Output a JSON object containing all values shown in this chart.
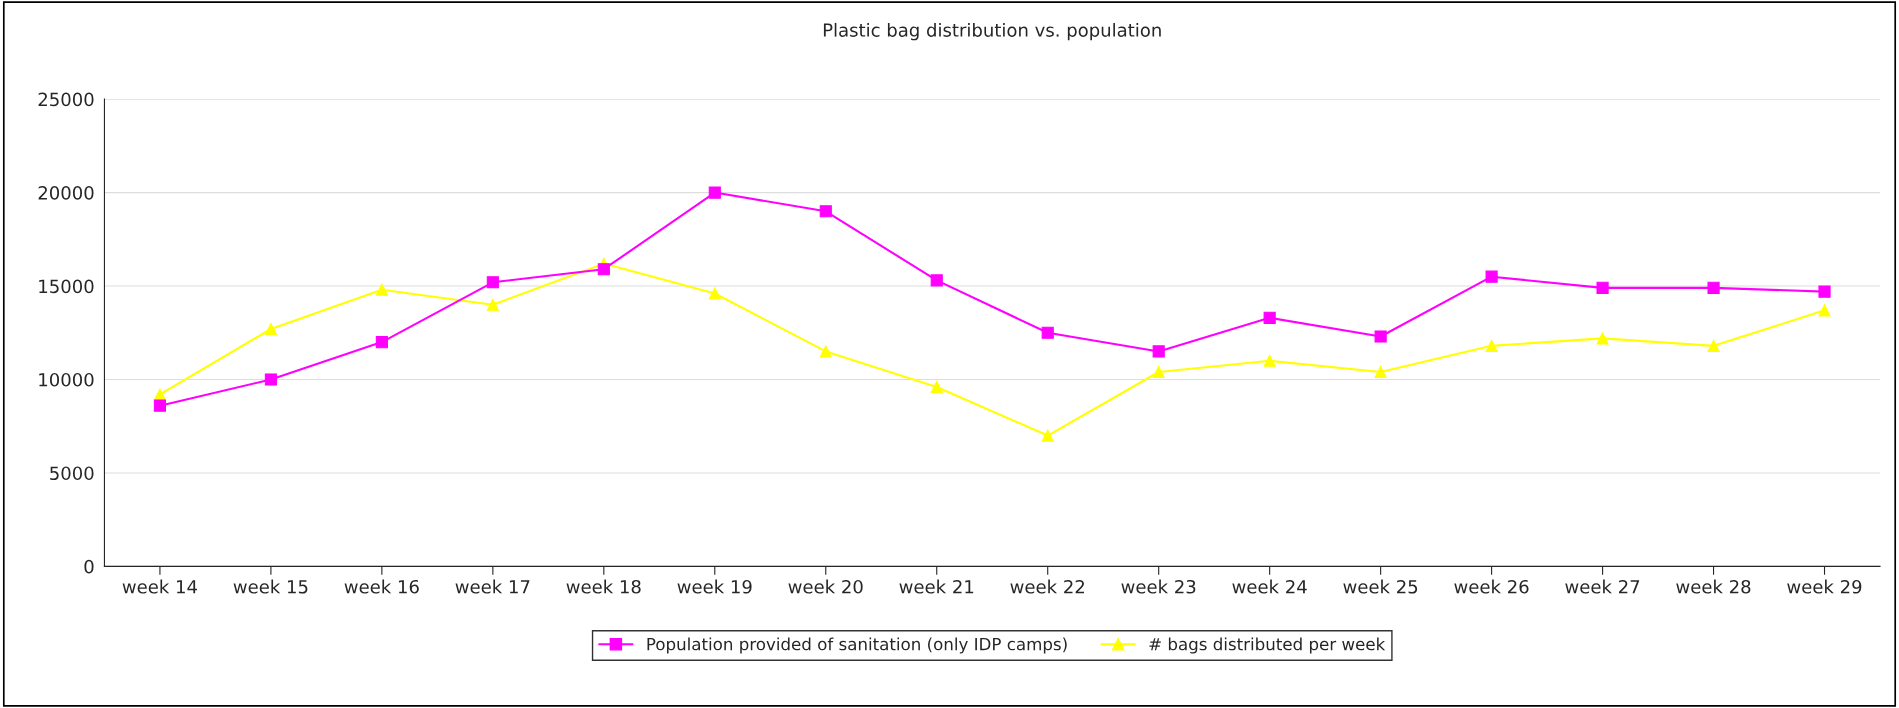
{
  "chart_data": {
    "type": "line",
    "title": "Plastic bag distribution vs. population",
    "categories": [
      "week 14",
      "week 15",
      "week 16",
      "week 17",
      "week 18",
      "week 19",
      "week 20",
      "week 21",
      "week 22",
      "week 23",
      "week 24",
      "week 25",
      "week 26",
      "week 27",
      "week 28",
      "week 29"
    ],
    "series": [
      {
        "name": "Population provided of sanitation (only IDP camps)",
        "color": "#ff00ff",
        "marker": "square",
        "values": [
          8600,
          10000,
          12000,
          15200,
          15900,
          20000,
          19000,
          15300,
          12500,
          11500,
          13300,
          12300,
          15500,
          14900,
          14900,
          14700
        ]
      },
      {
        "name": "# bags distributed per week",
        "color": "#ffff00",
        "marker": "triangle",
        "values": [
          9200,
          12700,
          14800,
          14000,
          16200,
          14600,
          11500,
          9600,
          7000,
          10400,
          11000,
          10400,
          11800,
          12200,
          11800,
          13700
        ]
      }
    ],
    "ylim": [
      0,
      25000
    ],
    "yticks": [
      0,
      5000,
      10000,
      15000,
      20000,
      25000
    ],
    "grid": "y",
    "legend": "bottom"
  }
}
